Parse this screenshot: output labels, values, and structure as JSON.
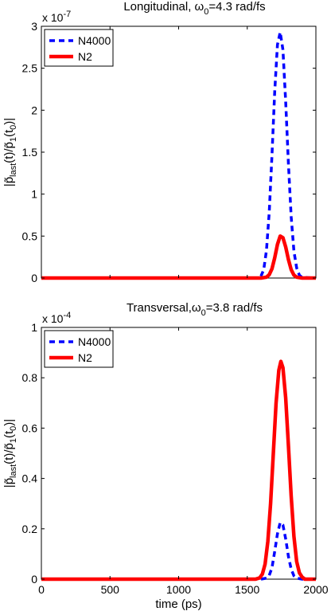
{
  "chart_data": [
    {
      "type": "line",
      "title_prefix": "Longitudinal, ω",
      "title_sub": "0",
      "title_suffix": "=4.3 rad/fs",
      "exponent_label": "x 10",
      "exponent_power": "-7",
      "ylabel_parts": [
        "|p̃",
        "last",
        "(t)/p̃",
        "1",
        "(t",
        "0",
        ")|"
      ],
      "xlabel": "",
      "xlim": [
        0,
        2000
      ],
      "ylim": [
        0,
        3
      ],
      "xticks": [
        0,
        500,
        1000,
        1500,
        2000
      ],
      "xtick_labels_visible": false,
      "yticks": [
        0,
        0.5,
        1,
        1.5,
        2,
        2.5,
        3
      ],
      "ytick_labels": [
        "0",
        "0.5",
        "1",
        "1.5",
        "2",
        "2.5",
        "3"
      ],
      "legend_position": "top-left",
      "series": [
        {
          "name": "N4000",
          "color": "#0000ff",
          "style": "dashed",
          "x": [
            0,
            1550,
            1580,
            1600,
            1620,
            1640,
            1660,
            1680,
            1700,
            1720,
            1740,
            1760,
            1780,
            1800,
            1820,
            1840,
            1860,
            1880,
            1900,
            2000
          ],
          "y": [
            0,
            0,
            0.004,
            0.023,
            0.1,
            0.33,
            0.78,
            1.46,
            2.22,
            2.78,
            2.93,
            2.72,
            2.1,
            1.36,
            0.73,
            0.32,
            0.12,
            0.033,
            0.008,
            0
          ]
        },
        {
          "name": "N2",
          "color": "#ff0000",
          "style": "solid",
          "x": [
            0,
            1600,
            1640,
            1660,
            1680,
            1700,
            1720,
            1740,
            1760,
            1780,
            1800,
            1820,
            1840,
            1860,
            1900,
            2000
          ],
          "y": [
            0,
            0,
            0.01,
            0.04,
            0.11,
            0.24,
            0.4,
            0.5,
            0.48,
            0.37,
            0.22,
            0.1,
            0.035,
            0.01,
            0,
            0
          ]
        }
      ]
    },
    {
      "type": "line",
      "title_prefix": "Transversal,ω",
      "title_sub": "0",
      "title_suffix": "=3.8 rad/fs",
      "exponent_label": "x 10",
      "exponent_power": "-4",
      "ylabel_parts": [
        "|p̃",
        "last",
        "(t)/p̃",
        "1",
        "(t",
        "0",
        ")|"
      ],
      "xlabel": "time (ps)",
      "xlim": [
        0,
        2000
      ],
      "ylim": [
        0,
        1
      ],
      "xticks": [
        0,
        500,
        1000,
        1500,
        2000
      ],
      "xtick_labels": [
        "0",
        "500",
        "1000",
        "1500",
        "2000"
      ],
      "xtick_labels_visible": true,
      "yticks": [
        0,
        0.2,
        0.4,
        0.6,
        0.8,
        1
      ],
      "ytick_labels": [
        "0",
        "0.2",
        "0.4",
        "0.6",
        "0.8",
        "1"
      ],
      "legend_position": "top-left",
      "series": [
        {
          "name": "N4000",
          "color": "#0000ff",
          "style": "dashed",
          "x": [
            0,
            1600,
            1640,
            1660,
            1680,
            1700,
            1720,
            1740,
            1760,
            1780,
            1800,
            1820,
            1840,
            1860,
            1900,
            2000
          ],
          "y": [
            0,
            0,
            0.004,
            0.015,
            0.045,
            0.11,
            0.18,
            0.225,
            0.215,
            0.16,
            0.09,
            0.04,
            0.013,
            0.004,
            0,
            0
          ]
        },
        {
          "name": "N2",
          "color": "#ff0000",
          "style": "solid",
          "x": [
            0,
            1560,
            1590,
            1610,
            1630,
            1650,
            1670,
            1690,
            1710,
            1730,
            1745,
            1760,
            1780,
            1800,
            1820,
            1840,
            1860,
            1880,
            1900,
            1920,
            2000
          ],
          "y": [
            0,
            0,
            0.005,
            0.02,
            0.06,
            0.15,
            0.3,
            0.5,
            0.7,
            0.83,
            0.865,
            0.84,
            0.72,
            0.53,
            0.33,
            0.17,
            0.07,
            0.025,
            0.008,
            0,
            0
          ]
        }
      ]
    }
  ]
}
